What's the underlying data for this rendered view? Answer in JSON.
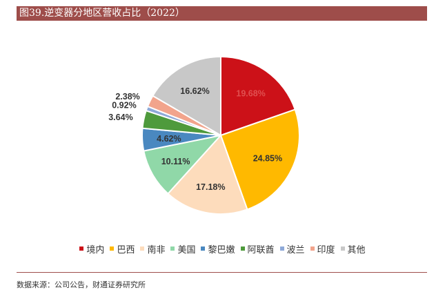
{
  "title": "图39.逆变器分地区营收占比（2022）",
  "source": "数据来源：公司公告，财通证券研究所",
  "chart_data": {
    "type": "pie",
    "title": "",
    "slices": [
      {
        "label": "境内",
        "value": 19.68,
        "display": "19.68%",
        "color": "#cc1118"
      },
      {
        "label": "巴西",
        "value": 24.85,
        "display": "24.85%",
        "color": "#ffb900"
      },
      {
        "label": "南非",
        "value": 17.18,
        "display": "17.18%",
        "color": "#fddcbc"
      },
      {
        "label": "美国",
        "value": 10.11,
        "display": "10.11%",
        "color": "#90d8a8"
      },
      {
        "label": "黎巴嫩",
        "value": 4.62,
        "display": "4.62%",
        "color": "#4a88c0"
      },
      {
        "label": "阿联酋",
        "value": 3.64,
        "display": "3.64%",
        "color": "#4e9a3c"
      },
      {
        "label": "波兰",
        "value": 0.92,
        "display": "0.92%",
        "color": "#8ea9d8"
      },
      {
        "label": "印度",
        "value": 2.38,
        "display": "2.38%",
        "color": "#f2a48c"
      },
      {
        "label": "其他",
        "value": 16.62,
        "display": "16.62%",
        "color": "#c8c8c8"
      }
    ],
    "label_color_default": "#333333",
    "label_color_on_red": "#e05050",
    "legend_position": "bottom"
  }
}
